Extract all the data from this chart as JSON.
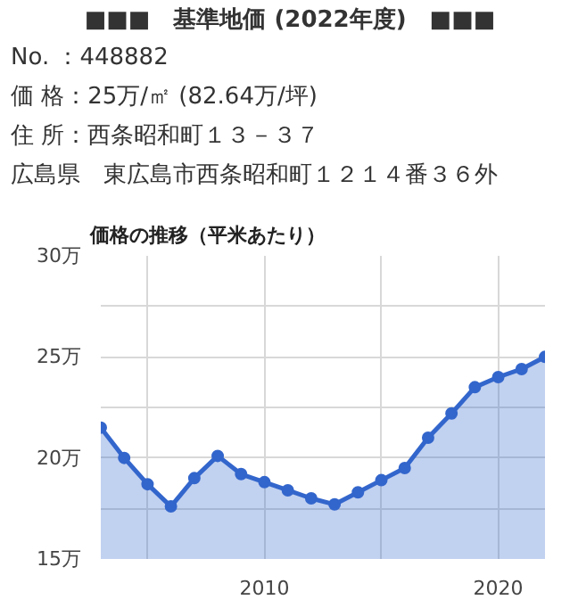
{
  "chart_data": {
    "type": "area",
    "title": "■■■　基準地価 (2022年度)　■■■",
    "annotations": [
      "No. ：448882",
      "価 格：25万/㎡ (82.64万/坪)",
      "住 所：西条昭和町１３－３７",
      "広島県　東広島市西条昭和町１２１４番３６外"
    ],
    "subtitle": "価格の推移（平米あたり）",
    "x": [
      2003,
      2004,
      2005,
      2006,
      2007,
      2008,
      2009,
      2010,
      2011,
      2012,
      2013,
      2014,
      2015,
      2016,
      2017,
      2018,
      2019,
      2020,
      2021,
      2022
    ],
    "series": [
      {
        "color": "#3366cc",
        "values": [
          21.5,
          20.0,
          18.7,
          17.6,
          19.0,
          20.1,
          19.2,
          18.8,
          18.4,
          18.0,
          17.7,
          18.3,
          18.9,
          19.5,
          21.0,
          22.2,
          23.5,
          24.0,
          24.4,
          25.0
        ]
      }
    ],
    "xlim": [
      2003,
      2022
    ],
    "xticks": [
      {
        "value": 2005,
        "label": null
      },
      {
        "value": 2010,
        "label": "2010"
      },
      {
        "value": 2015,
        "label": null
      },
      {
        "value": 2020,
        "label": "2020"
      }
    ],
    "ylim": [
      15,
      30
    ],
    "yticks": [
      {
        "value": 15,
        "label": "15万"
      },
      {
        "value": 17.5,
        "label": null
      },
      {
        "value": 20,
        "label": "20万"
      },
      {
        "value": 22.5,
        "label": null
      },
      {
        "value": 25,
        "label": "25万"
      },
      {
        "value": 27.5,
        "label": null
      },
      {
        "value": 30,
        "label": "30万"
      }
    ],
    "grid": true,
    "marker": "circle"
  }
}
